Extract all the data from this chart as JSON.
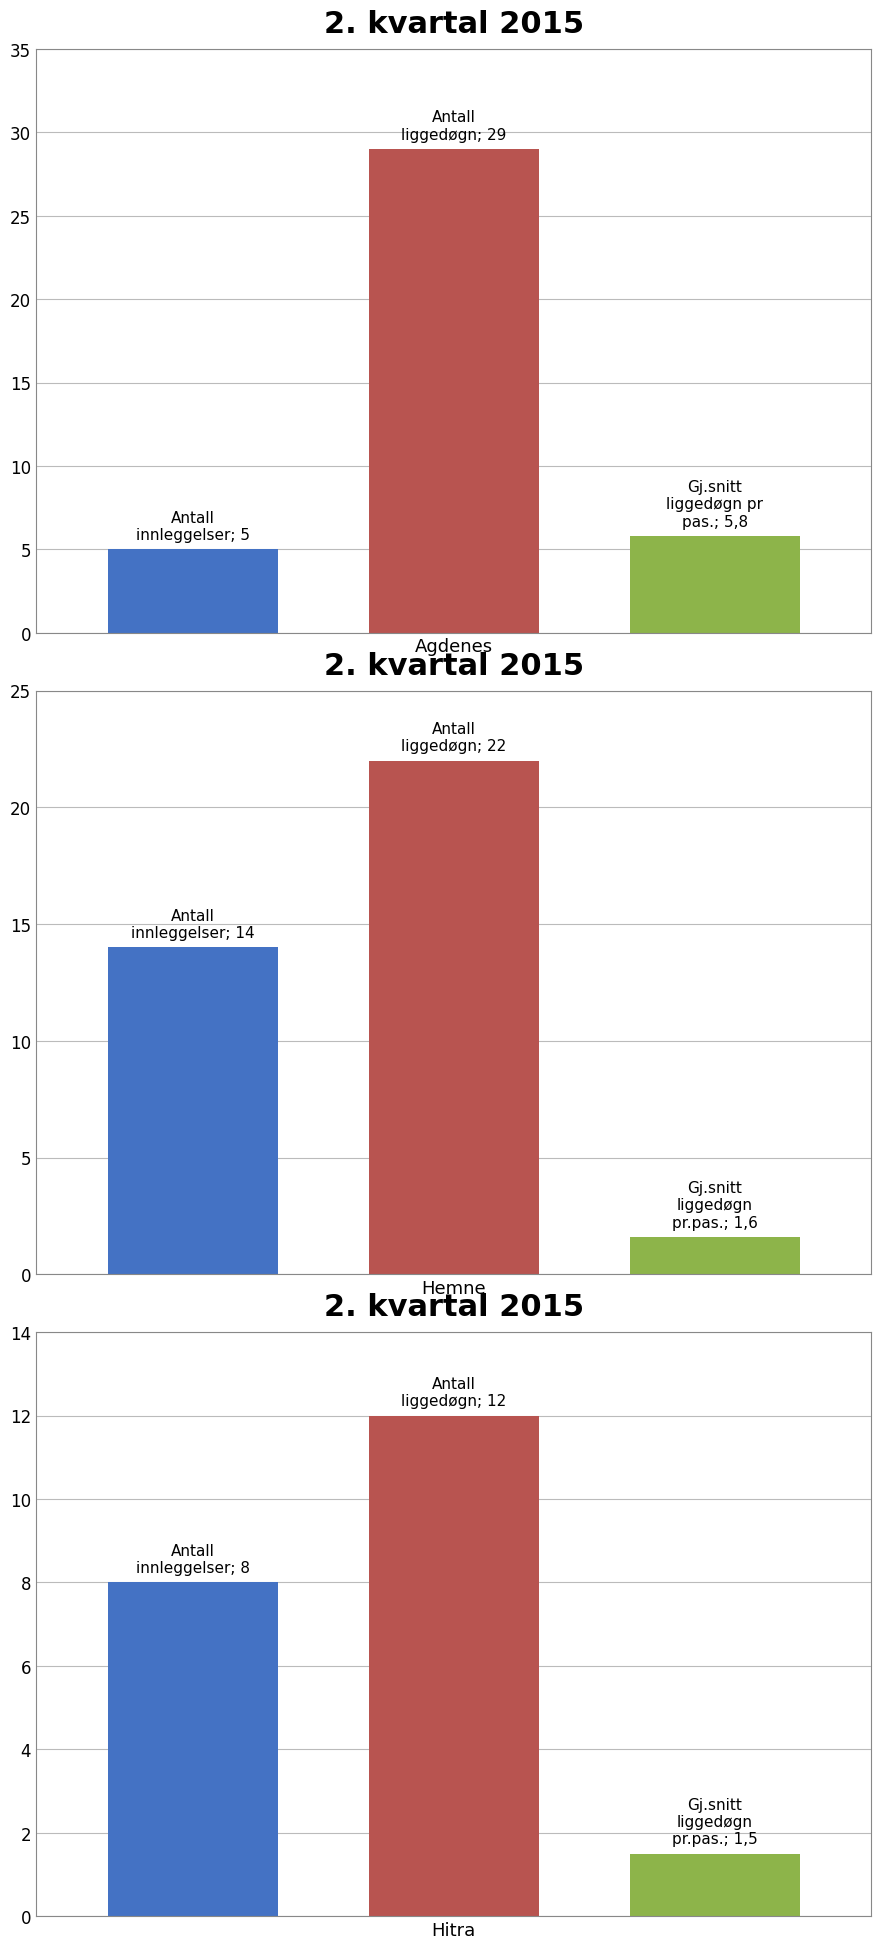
{
  "charts": [
    {
      "title": "2. kvartal 2015",
      "xlabel": "Agdenes",
      "bars": [
        {
          "label": "Antall\ninnleggelser; 5",
          "value": 5,
          "color": "#4472C4",
          "label_ha": "center"
        },
        {
          "label": "Antall\nliggedøgn; 29",
          "value": 29,
          "color": "#B85450",
          "label_ha": "center"
        },
        {
          "label": "Gj.snitt\nliggedøgn pr\npas.; 5,8",
          "value": 5.8,
          "color": "#8DB44A",
          "label_ha": "center"
        }
      ],
      "ylim": [
        0,
        35
      ],
      "yticks": [
        0,
        5,
        10,
        15,
        20,
        25,
        30,
        35
      ]
    },
    {
      "title": "2. kvartal 2015",
      "xlabel": "Hemne",
      "bars": [
        {
          "label": "Antall\ninnleggelser; 14",
          "value": 14,
          "color": "#4472C4",
          "label_ha": "center"
        },
        {
          "label": "Antall\nliggedøgn; 22",
          "value": 22,
          "color": "#B85450",
          "label_ha": "center"
        },
        {
          "label": "Gj.snitt\nliggedøgn\npr.pas.; 1,6",
          "value": 1.6,
          "color": "#8DB44A",
          "label_ha": "center"
        }
      ],
      "ylim": [
        0,
        25
      ],
      "yticks": [
        0,
        5,
        10,
        15,
        20,
        25
      ]
    },
    {
      "title": "2. kvartal 2015",
      "xlabel": "Hitra",
      "bars": [
        {
          "label": "Antall\ninnleggelser; 8",
          "value": 8,
          "color": "#4472C4",
          "label_ha": "center"
        },
        {
          "label": "Antall\nliggedøgn; 12",
          "value": 12,
          "color": "#B85450",
          "label_ha": "center"
        },
        {
          "label": "Gj.snitt\nliggedøgn\npr.pas.; 1,5",
          "value": 1.5,
          "color": "#8DB44A",
          "label_ha": "center"
        }
      ],
      "ylim": [
        0,
        14
      ],
      "yticks": [
        0,
        2,
        4,
        6,
        8,
        10,
        12,
        14
      ]
    }
  ],
  "bar_positions": [
    1,
    2,
    3
  ],
  "bar_width": 0.65,
  "title_fontsize": 22,
  "label_fontsize": 11,
  "tick_fontsize": 12,
  "xlabel_fontsize": 13,
  "background_color": "#FFFFFF",
  "grid_color": "#BBBBBB",
  "spine_color": "#888888"
}
